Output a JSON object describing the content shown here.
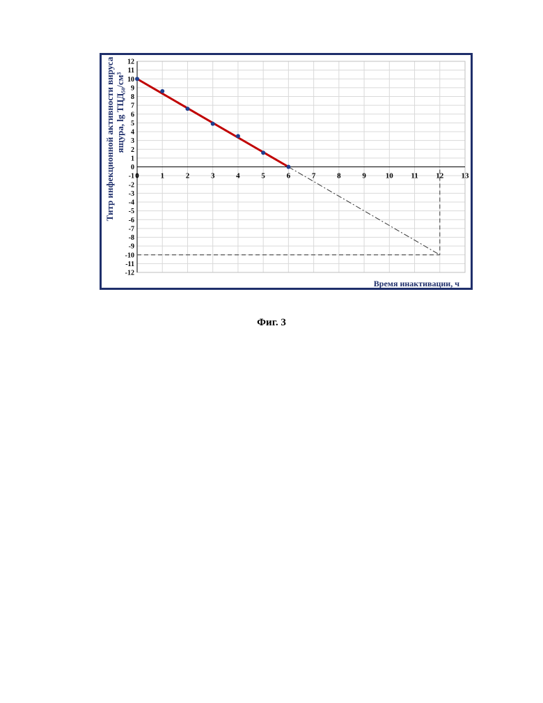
{
  "figure_caption": "Фиг. 3",
  "chart_data": {
    "type": "scatter",
    "ylabel_line1": "Титр инфекционной активности вируса",
    "ylabel_line2": "ящура, lg ТЦД₅₀/см³",
    "xlabel": "Время инактивации, ч",
    "xlim": [
      0,
      13
    ],
    "ylim": [
      -12,
      12
    ],
    "x_ticks": [
      0,
      1,
      2,
      3,
      4,
      5,
      6,
      7,
      8,
      9,
      10,
      11,
      12,
      13
    ],
    "y_ticks": [
      12,
      11,
      10,
      9,
      8,
      7,
      6,
      5,
      4,
      3,
      2,
      1,
      0,
      -1,
      -2,
      -3,
      -4,
      -5,
      -6,
      -7,
      -8,
      -9,
      -10,
      -11,
      -12
    ],
    "grid": true,
    "series": [
      {
        "x": [
          0,
          1,
          2,
          3,
          4,
          5,
          6
        ],
        "y": [
          10,
          8.6,
          6.6,
          4.9,
          3.5,
          1.6,
          0
        ],
        "color": "#1f3f8f"
      }
    ],
    "trend_line": {
      "x": [
        0,
        6
      ],
      "y": [
        10,
        0
      ],
      "color": "#c00000"
    },
    "extrapolation": {
      "x": [
        6,
        12
      ],
      "y": [
        0,
        -10
      ]
    },
    "guide_lines": {
      "x_value": 12,
      "y_value": -10
    }
  }
}
